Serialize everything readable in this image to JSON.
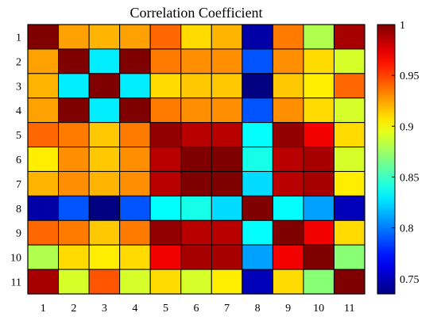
{
  "chart_data": {
    "type": "heatmap",
    "title": "Correlation Coefficient",
    "xlabel": "",
    "ylabel": "",
    "x_categories": [
      "1",
      "2",
      "3",
      "4",
      "5",
      "6",
      "7",
      "8",
      "9",
      "10",
      "11"
    ],
    "y_categories": [
      "1",
      "2",
      "3",
      "4",
      "5",
      "6",
      "7",
      "8",
      "9",
      "10",
      "11"
    ],
    "values": [
      [
        1.0,
        0.925,
        0.92,
        0.925,
        0.94,
        0.91,
        0.92,
        0.745,
        0.935,
        0.88,
        0.99
      ],
      [
        0.925,
        1.0,
        0.83,
        1.0,
        0.935,
        0.93,
        0.93,
        0.79,
        0.93,
        0.91,
        0.89
      ],
      [
        0.92,
        0.83,
        1.0,
        0.83,
        0.91,
        0.915,
        0.915,
        0.735,
        0.915,
        0.905,
        0.94
      ],
      [
        0.925,
        1.0,
        0.83,
        1.0,
        0.935,
        0.93,
        0.93,
        0.79,
        0.93,
        0.91,
        0.89
      ],
      [
        0.94,
        0.935,
        0.915,
        0.935,
        0.995,
        0.985,
        0.985,
        0.835,
        0.995,
        0.97,
        0.91
      ],
      [
        0.905,
        0.93,
        0.915,
        0.93,
        0.985,
        1.0,
        1.0,
        0.84,
        0.985,
        0.99,
        0.89
      ],
      [
        0.92,
        0.93,
        0.92,
        0.93,
        0.985,
        1.0,
        1.0,
        0.825,
        0.985,
        0.99,
        0.905
      ],
      [
        0.745,
        0.79,
        0.735,
        0.79,
        0.835,
        0.84,
        0.825,
        1.0,
        0.835,
        0.81,
        0.75
      ],
      [
        0.94,
        0.935,
        0.915,
        0.935,
        0.995,
        0.985,
        0.985,
        0.835,
        1.0,
        0.97,
        0.91
      ],
      [
        0.88,
        0.91,
        0.905,
        0.91,
        0.97,
        0.99,
        0.99,
        0.81,
        0.97,
        1.0,
        0.87
      ],
      [
        0.99,
        0.89,
        0.945,
        0.89,
        0.91,
        0.89,
        0.905,
        0.75,
        0.91,
        0.87,
        1.0
      ]
    ],
    "colorbar": {
      "min": 0.735,
      "max": 1.0,
      "ticks": [
        0.75,
        0.8,
        0.85,
        0.9,
        0.95,
        1
      ],
      "tick_labels": [
        "0.75",
        "0.8",
        "0.85",
        "0.9",
        "0.95",
        "1"
      ],
      "colormap": "jet"
    },
    "grid": true,
    "legend": "colorbar-right"
  }
}
